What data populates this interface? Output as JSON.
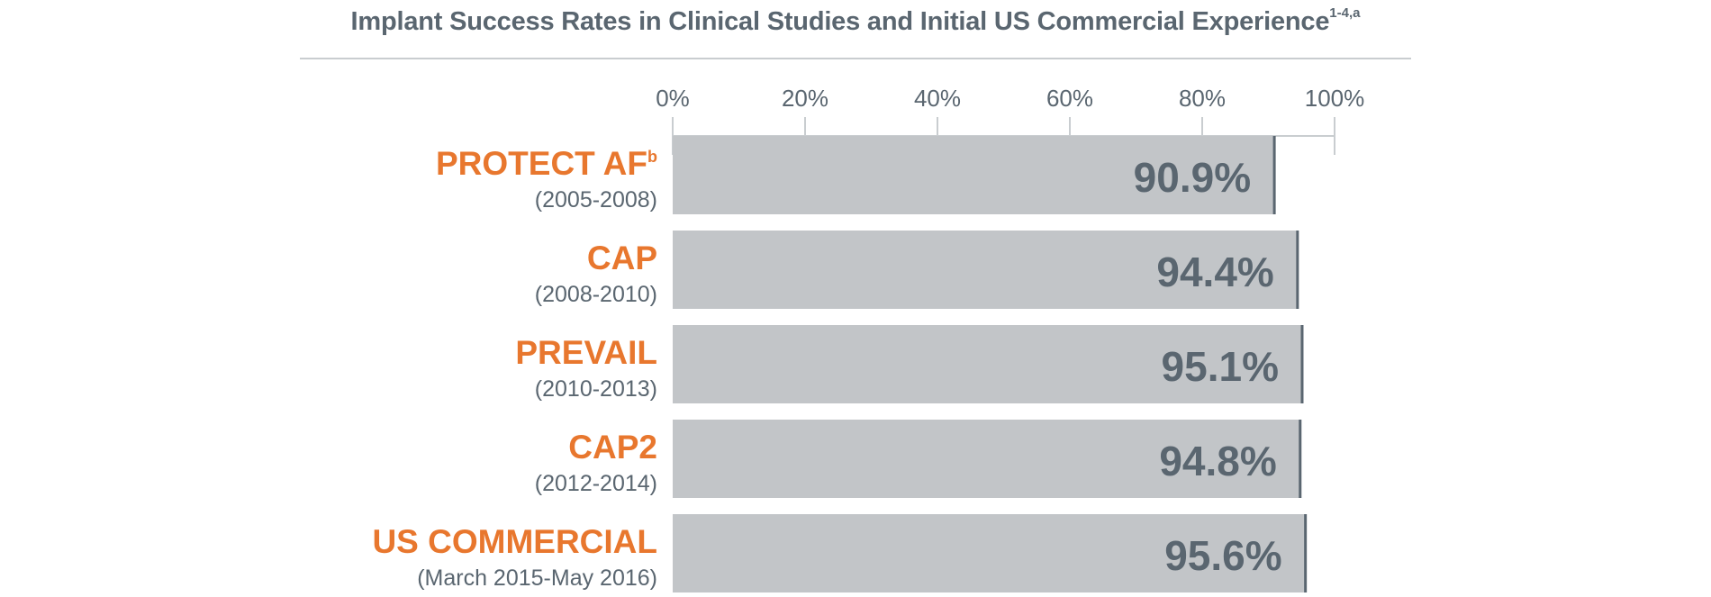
{
  "chart_data": {
    "type": "bar",
    "orientation": "horizontal",
    "title": "Implant Success Rates in Clinical Studies and Initial US Commercial Experience",
    "title_superscript": "1-4,a",
    "categories": [
      "PROTECT AF",
      "CAP",
      "PREVAIL",
      "CAP2",
      "US COMMERCIAL"
    ],
    "category_superscripts": [
      "b",
      "",
      "",
      "",
      ""
    ],
    "category_periods": [
      "(2005-2008)",
      "(2008-2010)",
      "(2010-2013)",
      "(2012-2014)",
      "(March 2015-May 2016)"
    ],
    "values": [
      90.9,
      94.4,
      95.1,
      94.8,
      95.6
    ],
    "value_labels": [
      "90.9%",
      "94.4%",
      "95.1%",
      "94.8%",
      "95.6%"
    ],
    "x_ticks": [
      0,
      20,
      40,
      60,
      80,
      100
    ],
    "x_tick_labels": [
      "0%",
      "20%",
      "40%",
      "60%",
      "80%",
      "100%"
    ],
    "xlim": [
      0,
      100
    ],
    "xlabel": "",
    "ylabel": "",
    "grid": true,
    "colors": {
      "bar_fill": "#c2c5c8",
      "bar_edge": "#5a6670",
      "category_text": "#e8772e",
      "text": "#5a6670",
      "gridline": "#c9cdd0"
    }
  }
}
